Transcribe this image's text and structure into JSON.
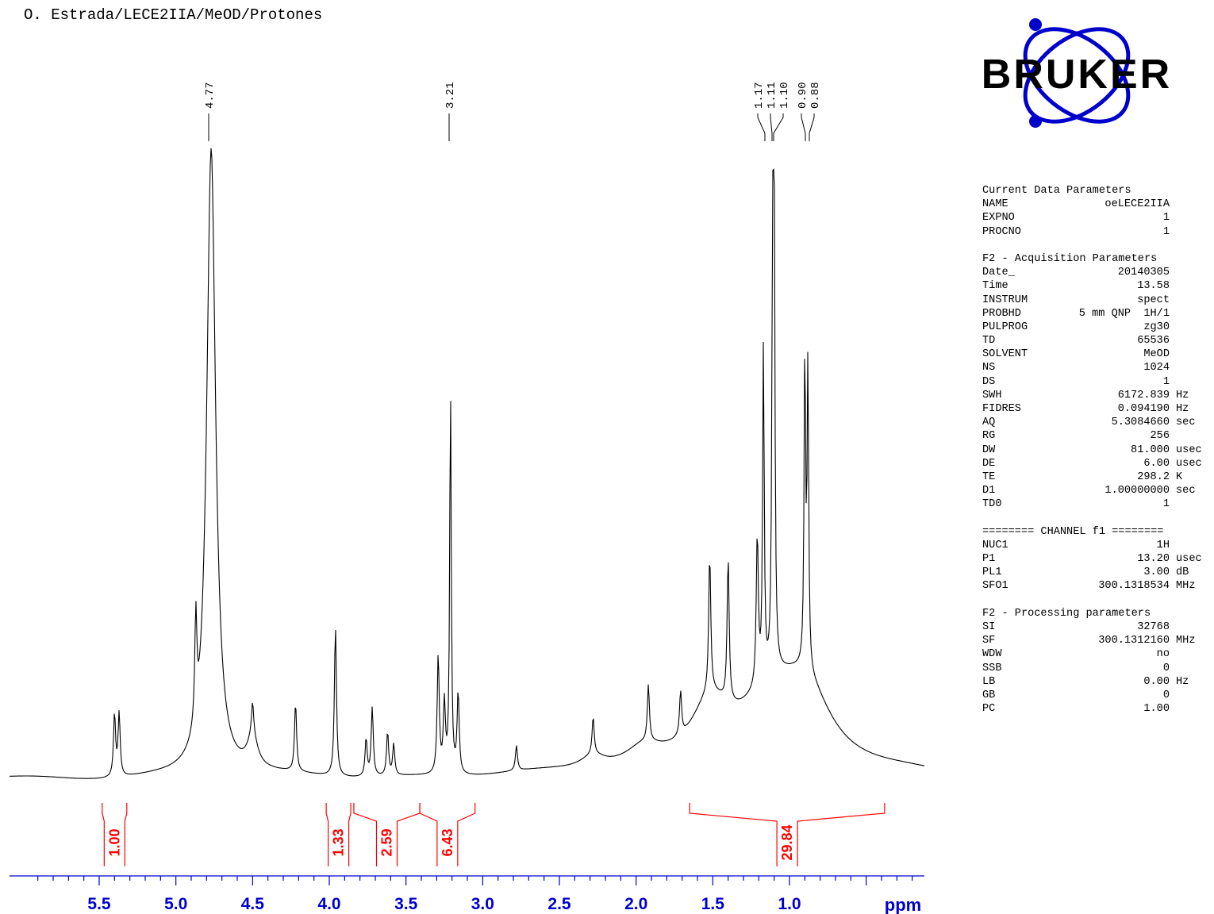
{
  "header": {
    "title": "O. Estrada/LECE2IIA/MeOD/Protones"
  },
  "logo": {
    "text": "BRUKER",
    "color": "#0000cc"
  },
  "chart_data": {
    "type": "line",
    "title": "O. Estrada/LECE2IIA/MeOD/Protones",
    "xlabel": "ppm",
    "x_reversed": true,
    "xlim": [
      5.97,
      0.0
    ],
    "x_ticks": [
      5.5,
      5.0,
      4.5,
      4.0,
      3.5,
      3.0,
      2.5,
      2.0,
      1.5,
      1.0
    ],
    "x_tick_labels": [
      "5.5",
      "5.0",
      "4.5",
      "4.0",
      "3.5",
      "3.0",
      "2.5",
      "2.0",
      "1.5",
      "1.0"
    ],
    "peak_labels": [
      "4.77",
      "3.21",
      "1.17",
      "1.11",
      "1.10",
      "0.90",
      "0.88"
    ],
    "peaks": [
      {
        "ppm": 5.4,
        "height": 0.1
      },
      {
        "ppm": 5.37,
        "height": 0.1
      },
      {
        "ppm": 4.87,
        "height": 0.17
      },
      {
        "ppm": 4.77,
        "height": 1.0
      },
      {
        "ppm": 4.5,
        "height": 0.05
      },
      {
        "ppm": 4.22,
        "height": 0.11
      },
      {
        "ppm": 3.96,
        "height": 0.24
      },
      {
        "ppm": 3.76,
        "height": 0.06
      },
      {
        "ppm": 3.72,
        "height": 0.11
      },
      {
        "ppm": 3.62,
        "height": 0.07
      },
      {
        "ppm": 3.58,
        "height": 0.05
      },
      {
        "ppm": 3.29,
        "height": 0.19
      },
      {
        "ppm": 3.25,
        "height": 0.11
      },
      {
        "ppm": 3.21,
        "height": 0.62
      },
      {
        "ppm": 3.16,
        "height": 0.13
      },
      {
        "ppm": 2.78,
        "height": 0.04
      },
      {
        "ppm": 2.28,
        "height": 0.06
      },
      {
        "ppm": 1.92,
        "height": 0.09
      },
      {
        "ppm": 1.71,
        "height": 0.07
      },
      {
        "ppm": 1.52,
        "height": 0.22
      },
      {
        "ppm": 1.4,
        "height": 0.23
      },
      {
        "ppm": 1.21,
        "height": 0.24
      },
      {
        "ppm": 1.17,
        "height": 0.53
      },
      {
        "ppm": 1.11,
        "height": 0.6
      },
      {
        "ppm": 1.1,
        "height": 0.7
      },
      {
        "ppm": 0.9,
        "height": 0.5
      },
      {
        "ppm": 0.88,
        "height": 0.48
      }
    ],
    "integrals": [
      {
        "from": 5.48,
        "to": 5.32,
        "value": "1.00"
      },
      {
        "from": 4.02,
        "to": 3.86,
        "value": "1.33"
      },
      {
        "from": 3.84,
        "to": 3.41,
        "value": "2.59"
      },
      {
        "from": 3.41,
        "to": 3.05,
        "value": "6.43"
      },
      {
        "from": 1.65,
        "to": 0.38,
        "value": "29.84"
      }
    ],
    "integral_color": "#ff0000"
  },
  "parameters": {
    "blocks": [
      {
        "header": "Current Data Parameters",
        "rows": [
          [
            "NAME",
            "oeLECE2IIA",
            ""
          ],
          [
            "EXPNO",
            "1",
            ""
          ],
          [
            "PROCNO",
            "1",
            ""
          ]
        ]
      },
      {
        "header": "F2 - Acquisition Parameters",
        "rows": [
          [
            "Date_",
            "20140305",
            ""
          ],
          [
            "Time",
            "13.58",
            ""
          ],
          [
            "INSTRUM",
            "spect",
            ""
          ],
          [
            "PROBHD",
            "5 mm QNP  1H/1",
            ""
          ],
          [
            "PULPROG",
            "zg30",
            ""
          ],
          [
            "TD",
            "65536",
            ""
          ],
          [
            "SOLVENT",
            "MeOD",
            ""
          ],
          [
            "NS",
            "1024",
            ""
          ],
          [
            "DS",
            "1",
            ""
          ],
          [
            "SWH",
            "6172.839",
            "Hz"
          ],
          [
            "FIDRES",
            "0.094190",
            "Hz"
          ],
          [
            "AQ",
            "5.3084660",
            "sec"
          ],
          [
            "RG",
            "256",
            ""
          ],
          [
            "DW",
            "81.000",
            "usec"
          ],
          [
            "DE",
            "6.00",
            "usec"
          ],
          [
            "TE",
            "298.2",
            "K"
          ],
          [
            "D1",
            "1.00000000",
            "sec"
          ],
          [
            "TD0",
            "1",
            ""
          ]
        ]
      },
      {
        "header": "======== CHANNEL f1 ========",
        "rows": [
          [
            "NUC1",
            "1H",
            ""
          ],
          [
            "P1",
            "13.20",
            "usec"
          ],
          [
            "PL1",
            "3.00",
            "dB"
          ],
          [
            "SFO1",
            "300.1318534",
            "MHz"
          ]
        ]
      },
      {
        "header": "F2 - Processing parameters",
        "rows": [
          [
            "SI",
            "32768",
            ""
          ],
          [
            "SF",
            "300.1312160",
            "MHz"
          ],
          [
            "WDW",
            "no",
            ""
          ],
          [
            "SSB",
            "0",
            ""
          ],
          [
            "LB",
            "0.00",
            "Hz"
          ],
          [
            "GB",
            "0",
            ""
          ],
          [
            "PC",
            "1.00",
            ""
          ]
        ]
      }
    ]
  }
}
